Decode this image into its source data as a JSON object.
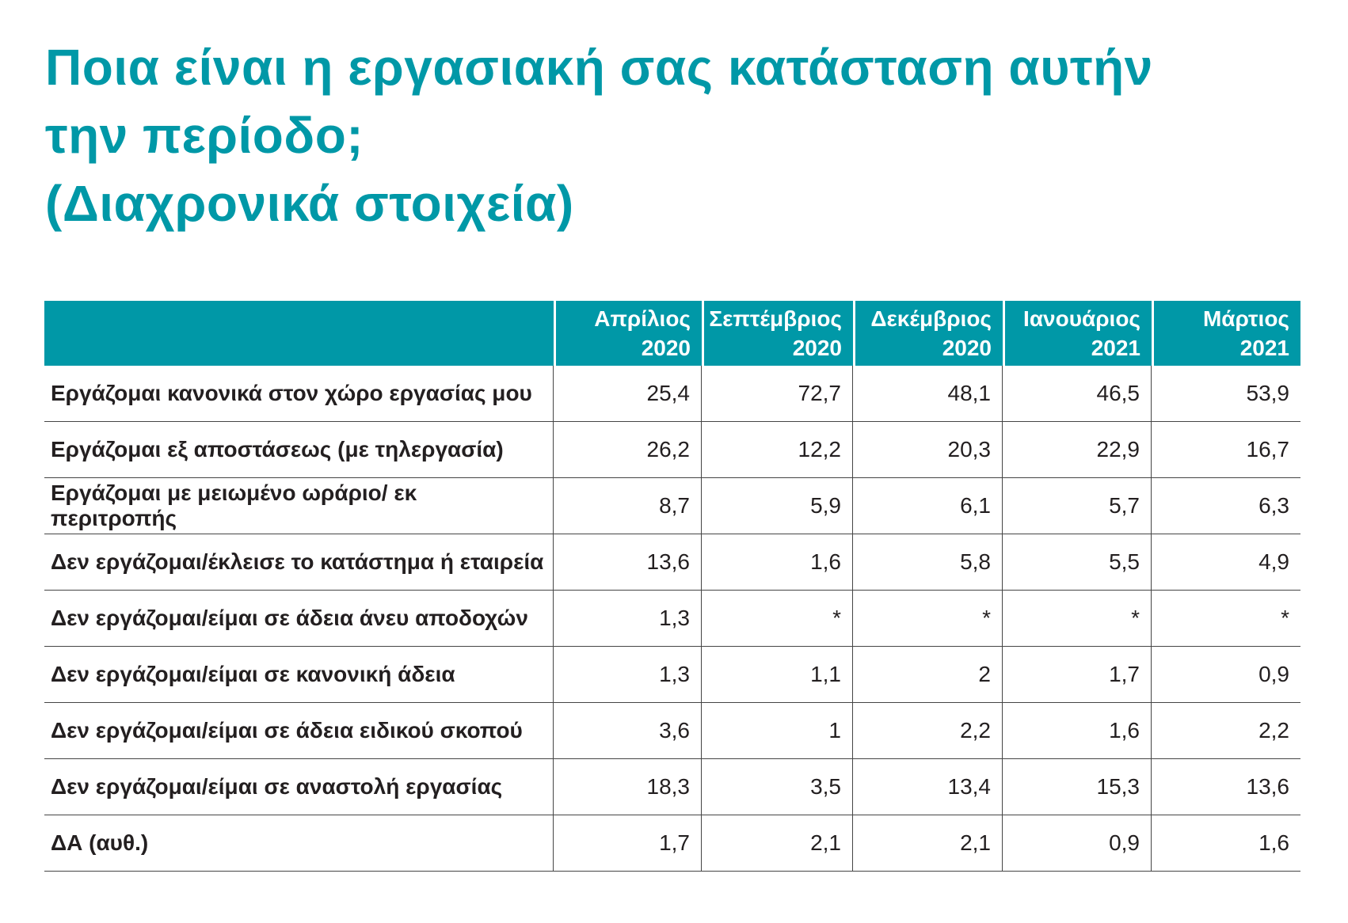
{
  "title": {
    "lines": [
      "Ποια είναι η εργασιακή σας κατάσταση αυτήν",
      "την περίοδο;",
      "(Διαχρονικά στοιχεία)"
    ]
  },
  "colors": {
    "accent_teal": "#0098a7",
    "header_text": "#ffffff",
    "body_text": "#231f20",
    "grid_line": "#454545"
  },
  "chart_data": {
    "type": "table",
    "title": "Ποια είναι η εργασιακή σας κατάσταση αυτήν την περίοδο; (Διαχρονικά στοιχεία)",
    "columns": [
      "Απρίλιος\n2020",
      "Σεπτέμβριος\n2020",
      "Δεκέμβριος\n2020",
      "Ιανουάριος\n2021",
      "Μάρτιος\n2021"
    ],
    "rows": [
      {
        "label": "Εργάζομαι κανονικά στον χώρο εργασίας μου",
        "values": [
          "25,4",
          "72,7",
          "48,1",
          "46,5",
          "53,9"
        ]
      },
      {
        "label": "Εργάζομαι εξ αποστάσεως (με τηλεργασία)",
        "values": [
          "26,2",
          "12,2",
          "20,3",
          "22,9",
          "16,7"
        ]
      },
      {
        "label": "Εργάζομαι με μειωμένο ωράριο/ εκ περιτροπής",
        "values": [
          "8,7",
          "5,9",
          "6,1",
          "5,7",
          "6,3"
        ]
      },
      {
        "label": "Δεν εργάζομαι/έκλεισε το κατάστημα ή εταιρεία",
        "values": [
          "13,6",
          "1,6",
          "5,8",
          "5,5",
          "4,9"
        ]
      },
      {
        "label": "Δεν εργάζομαι/είμαι σε άδεια άνευ αποδοχών",
        "values": [
          "1,3",
          "*",
          "*",
          "*",
          "*"
        ]
      },
      {
        "label": "Δεν εργάζομαι/είμαι σε κανονική άδεια",
        "values": [
          "1,3",
          "1,1",
          "2",
          "1,7",
          "0,9"
        ]
      },
      {
        "label": "Δεν εργάζομαι/είμαι σε άδεια ειδικού σκοπού",
        "values": [
          "3,6",
          "1",
          "2,2",
          "1,6",
          "2,2"
        ]
      },
      {
        "label": "Δεν εργάζομαι/είμαι σε αναστολή εργασίας",
        "values": [
          "18,3",
          "3,5",
          "13,4",
          "15,3",
          "13,6"
        ]
      },
      {
        "label": "ΔΑ (αυθ.)",
        "values": [
          "1,7",
          "2,1",
          "2,1",
          "0,9",
          "1,6"
        ]
      }
    ]
  }
}
